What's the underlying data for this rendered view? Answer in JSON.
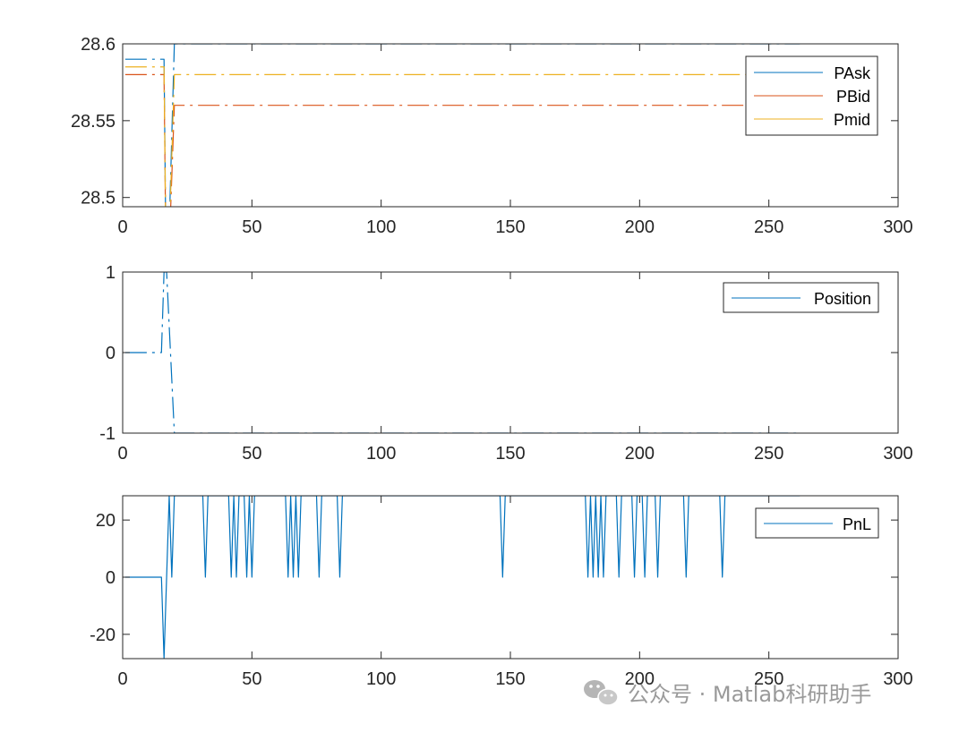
{
  "colors": {
    "blue": "#0072BD",
    "orange": "#D95319",
    "yellow": "#EDB120",
    "axis": "#262626"
  },
  "watermark": {
    "icon": "wechat-icon",
    "text": "公众号 · Matlab科研助手"
  },
  "chart_data": [
    {
      "type": "line",
      "xlim": [
        0,
        300
      ],
      "ylim": [
        28.494,
        28.6
      ],
      "xticks": [
        0,
        50,
        100,
        150,
        200,
        250,
        300
      ],
      "xtick_labels": [
        "0",
        "50",
        "100",
        "150",
        "200",
        "250",
        "300"
      ],
      "yticks": [
        28.5,
        28.55,
        28.6
      ],
      "ytick_labels": [
        "28.5",
        "28.55",
        "28.6"
      ],
      "grid": false,
      "legend_position": "top-right",
      "series": [
        {
          "name": "PAsk",
          "color": "#0072BD",
          "style": "dashdot",
          "points": [
            [
              1,
              28.59
            ],
            [
              16,
              28.59
            ],
            [
              17,
              28.42
            ],
            [
              20,
              28.6
            ],
            [
              262,
              28.6
            ]
          ]
        },
        {
          "name": "PBid",
          "color": "#D95319",
          "style": "dashdot",
          "points": [
            [
              1,
              28.58
            ],
            [
              16,
              28.58
            ],
            [
              17,
              28.42
            ],
            [
              20,
              28.56
            ],
            [
              262,
              28.56
            ]
          ]
        },
        {
          "name": "Pmid",
          "color": "#EDB120",
          "style": "dashdot",
          "points": [
            [
              1,
              28.585
            ],
            [
              16,
              28.585
            ],
            [
              17,
              28.42
            ],
            [
              20,
              28.58
            ],
            [
              262,
              28.58
            ]
          ]
        }
      ]
    },
    {
      "type": "line",
      "xlim": [
        0,
        300
      ],
      "ylim": [
        -1,
        1
      ],
      "xticks": [
        0,
        50,
        100,
        150,
        200,
        250,
        300
      ],
      "xtick_labels": [
        "0",
        "50",
        "100",
        "150",
        "200",
        "250",
        "300"
      ],
      "yticks": [
        -1,
        0,
        1
      ],
      "ytick_labels": [
        "-1",
        "0",
        "1"
      ],
      "grid": false,
      "legend_position": "top-right",
      "series": [
        {
          "name": "Position",
          "color": "#0072BD",
          "style": "dashdot",
          "points": [
            [
              1,
              0
            ],
            [
              15,
              0
            ],
            [
              16,
              1
            ],
            [
              17,
              1
            ],
            [
              20,
              -1
            ],
            [
              262,
              -1
            ]
          ]
        }
      ]
    },
    {
      "type": "line",
      "xlim": [
        0,
        300
      ],
      "ylim": [
        -28.5,
        28.5
      ],
      "xticks": [
        0,
        50,
        100,
        150,
        200,
        250,
        300
      ],
      "xtick_labels": [
        "0",
        "50",
        "100",
        "150",
        "200",
        "250",
        "300"
      ],
      "yticks": [
        -20,
        0,
        20
      ],
      "ytick_labels": [
        "-20",
        "0",
        "20"
      ],
      "grid": false,
      "legend_position": "top-right",
      "series": [
        {
          "name": "PnL",
          "color": "#0072BD",
          "style": "solid",
          "points": [
            [
              1,
              0
            ],
            [
              15,
              0
            ],
            [
              16,
              -28.5
            ],
            [
              18,
              28.5
            ],
            [
              19,
              0
            ],
            [
              20,
              28.5
            ],
            [
              31,
              28.5
            ],
            [
              32,
              0
            ],
            [
              33,
              28.5
            ],
            [
              41,
              28.5
            ],
            [
              42,
              0
            ],
            [
              43,
              28.5
            ],
            [
              44,
              0
            ],
            [
              45,
              28.5
            ],
            [
              47,
              28.5
            ],
            [
              48,
              0
            ],
            [
              49,
              28.5
            ],
            [
              50,
              0
            ],
            [
              51,
              28.5
            ],
            [
              63,
              28.5
            ],
            [
              64,
              0
            ],
            [
              65,
              28.5
            ],
            [
              66,
              0
            ],
            [
              67,
              28.5
            ],
            [
              68,
              0
            ],
            [
              69,
              28.5
            ],
            [
              75,
              28.5
            ],
            [
              76,
              0
            ],
            [
              77,
              28.5
            ],
            [
              83,
              28.5
            ],
            [
              84,
              0
            ],
            [
              85,
              28.5
            ],
            [
              146,
              28.5
            ],
            [
              147,
              0
            ],
            [
              148,
              28.5
            ],
            [
              179,
              28.5
            ],
            [
              180,
              0
            ],
            [
              181,
              28.5
            ],
            [
              182,
              0
            ],
            [
              183,
              28.5
            ],
            [
              184,
              0
            ],
            [
              185,
              28.5
            ],
            [
              186,
              0
            ],
            [
              187,
              28.5
            ],
            [
              191,
              28.5
            ],
            [
              192,
              0
            ],
            [
              193,
              28.5
            ],
            [
              197,
              28.5
            ],
            [
              198,
              0
            ],
            [
              199,
              28.5
            ],
            [
              201,
              28.5
            ],
            [
              202,
              0
            ],
            [
              203,
              28.5
            ],
            [
              206,
              28.5
            ],
            [
              207,
              0
            ],
            [
              208,
              28.5
            ],
            [
              217,
              28.5
            ],
            [
              218,
              0
            ],
            [
              219,
              28.5
            ],
            [
              231,
              28.5
            ],
            [
              232,
              0
            ],
            [
              233,
              28.5
            ],
            [
              262,
              28.5
            ]
          ]
        }
      ]
    }
  ]
}
